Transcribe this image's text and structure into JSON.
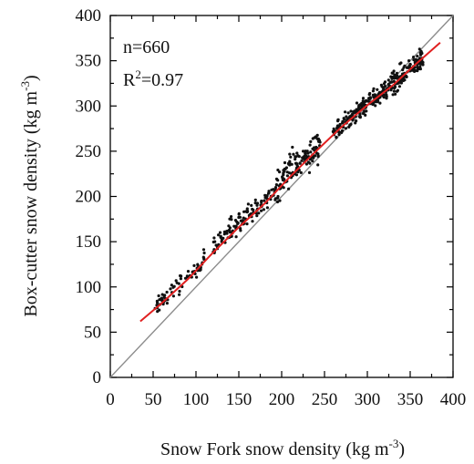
{
  "chart_data": {
    "type": "scatter",
    "xlabel": "Snow Fork snow density (kg m",
    "xlabel_sup": "-3",
    "xlabel_close": ")",
    "ylabel": "Box-cutter snow density (kg m",
    "ylabel_sup": "-3",
    "ylabel_close": ")",
    "xlim": [
      0,
      400
    ],
    "ylim": [
      0,
      400
    ],
    "x_ticks": [
      "0",
      "50",
      "100",
      "150",
      "200",
      "250",
      "300",
      "350",
      "400"
    ],
    "y_ticks": [
      "0",
      "50",
      "100",
      "150",
      "200",
      "250",
      "300",
      "350",
      "400"
    ],
    "annotations": {
      "n": "n=660",
      "r2_prefix": "R",
      "r2_sup": "2",
      "r2_value": "=0.97"
    },
    "reference_line": {
      "type": "1:1",
      "color": "#8c8c8c",
      "points": [
        [
          0,
          0
        ],
        [
          400,
          400
        ]
      ]
    },
    "fit_line": {
      "color": "#e02020",
      "points": [
        [
          35,
          62
        ],
        [
          60,
          82
        ],
        [
          90,
          108
        ],
        [
          120,
          138
        ],
        [
          150,
          166
        ],
        [
          180,
          192
        ],
        [
          210,
          222
        ],
        [
          240,
          250
        ],
        [
          270,
          277
        ],
        [
          300,
          301
        ],
        [
          330,
          323
        ],
        [
          355,
          345
        ],
        [
          385,
          370
        ]
      ]
    },
    "point_color": "#111111",
    "point_clusters": [
      {
        "x_range": [
          50,
          70
        ],
        "y_center_offset": 5,
        "spread": 6,
        "count": 30
      },
      {
        "x_range": [
          70,
          110
        ],
        "y_center_offset": 10,
        "spread": 7,
        "count": 45
      },
      {
        "x_range": [
          120,
          165
        ],
        "y_center_offset": 18,
        "spread": 9,
        "count": 80
      },
      {
        "x_range": [
          165,
          195
        ],
        "y_center_offset": 10,
        "spread": 7,
        "count": 50
      },
      {
        "x_range": [
          195,
          245
        ],
        "y_center_offset": 20,
        "spread": 13,
        "count": 130
      },
      {
        "x_range": [
          260,
          320
        ],
        "y_center_offset": 4,
        "spread": 7,
        "count": 180
      },
      {
        "x_range": [
          320,
          365
        ],
        "y_center_offset": 3,
        "spread": 9,
        "count": 145
      }
    ]
  }
}
